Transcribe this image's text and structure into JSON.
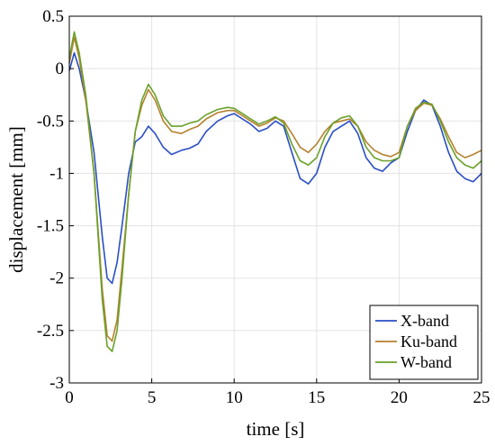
{
  "chart_data": {
    "type": "line",
    "title": "",
    "xlabel": "time [s]",
    "ylabel": "displacement [mm]",
    "xlim": [
      0,
      25
    ],
    "ylim": [
      -3,
      0.5
    ],
    "grid": true,
    "legend_placement": "bottom-right",
    "x_ticks": [
      0,
      5,
      10,
      15,
      20,
      25
    ],
    "x_tick_labels": [
      "0",
      "5",
      "10",
      "15",
      "20",
      "25"
    ],
    "y_ticks": [
      0.5,
      0,
      -0.5,
      -1,
      -1.5,
      -2,
      -2.5,
      -3
    ],
    "y_tick_labels": [
      "0.5",
      "0",
      "-0.5",
      "-1",
      "-1.5",
      "-2",
      "-2.5",
      "-3"
    ],
    "series": [
      {
        "name": "X-band",
        "color": "#2a4ec4",
        "points": [
          [
            0,
            -0.02
          ],
          [
            0.3,
            0.15
          ],
          [
            0.6,
            0.0
          ],
          [
            1.0,
            -0.3
          ],
          [
            1.5,
            -0.8
          ],
          [
            2.0,
            -1.6
          ],
          [
            2.3,
            -2.0
          ],
          [
            2.6,
            -2.05
          ],
          [
            2.9,
            -1.85
          ],
          [
            3.2,
            -1.5
          ],
          [
            3.6,
            -1.0
          ],
          [
            4.0,
            -0.7
          ],
          [
            4.4,
            -0.65
          ],
          [
            4.8,
            -0.55
          ],
          [
            5.2,
            -0.62
          ],
          [
            5.7,
            -0.75
          ],
          [
            6.2,
            -0.82
          ],
          [
            6.8,
            -0.78
          ],
          [
            7.3,
            -0.76
          ],
          [
            7.8,
            -0.72
          ],
          [
            8.3,
            -0.6
          ],
          [
            9.0,
            -0.5
          ],
          [
            9.6,
            -0.45
          ],
          [
            10.0,
            -0.43
          ],
          [
            10.5,
            -0.48
          ],
          [
            11.0,
            -0.53
          ],
          [
            11.5,
            -0.6
          ],
          [
            12.0,
            -0.57
          ],
          [
            12.5,
            -0.5
          ],
          [
            13.0,
            -0.55
          ],
          [
            13.5,
            -0.8
          ],
          [
            14.0,
            -1.05
          ],
          [
            14.5,
            -1.1
          ],
          [
            15.0,
            -1.0
          ],
          [
            15.5,
            -0.75
          ],
          [
            16.0,
            -0.6
          ],
          [
            16.5,
            -0.55
          ],
          [
            17.0,
            -0.5
          ],
          [
            17.5,
            -0.62
          ],
          [
            18.0,
            -0.85
          ],
          [
            18.5,
            -0.95
          ],
          [
            19.0,
            -0.98
          ],
          [
            19.5,
            -0.9
          ],
          [
            20.0,
            -0.85
          ],
          [
            20.5,
            -0.6
          ],
          [
            21.0,
            -0.4
          ],
          [
            21.5,
            -0.3
          ],
          [
            22.0,
            -0.35
          ],
          [
            22.5,
            -0.55
          ],
          [
            23.0,
            -0.8
          ],
          [
            23.5,
            -0.98
          ],
          [
            24.0,
            -1.05
          ],
          [
            24.5,
            -1.08
          ],
          [
            25.0,
            -1.0
          ]
        ]
      },
      {
        "name": "Ku-band",
        "color": "#b5812e",
        "points": [
          [
            0,
            0.05
          ],
          [
            0.3,
            0.3
          ],
          [
            0.6,
            0.1
          ],
          [
            1.0,
            -0.3
          ],
          [
            1.5,
            -1.0
          ],
          [
            2.0,
            -2.1
          ],
          [
            2.3,
            -2.55
          ],
          [
            2.6,
            -2.6
          ],
          [
            2.9,
            -2.4
          ],
          [
            3.2,
            -1.9
          ],
          [
            3.6,
            -1.2
          ],
          [
            4.0,
            -0.6
          ],
          [
            4.4,
            -0.35
          ],
          [
            4.8,
            -0.2
          ],
          [
            5.2,
            -0.3
          ],
          [
            5.7,
            -0.5
          ],
          [
            6.2,
            -0.6
          ],
          [
            6.8,
            -0.62
          ],
          [
            7.3,
            -0.58
          ],
          [
            7.8,
            -0.55
          ],
          [
            8.3,
            -0.48
          ],
          [
            9.0,
            -0.42
          ],
          [
            9.6,
            -0.4
          ],
          [
            10.0,
            -0.4
          ],
          [
            10.5,
            -0.45
          ],
          [
            11.0,
            -0.5
          ],
          [
            11.5,
            -0.55
          ],
          [
            12.0,
            -0.52
          ],
          [
            12.5,
            -0.47
          ],
          [
            13.0,
            -0.5
          ],
          [
            13.5,
            -0.62
          ],
          [
            14.0,
            -0.75
          ],
          [
            14.5,
            -0.8
          ],
          [
            15.0,
            -0.72
          ],
          [
            15.5,
            -0.6
          ],
          [
            16.0,
            -0.52
          ],
          [
            16.5,
            -0.5
          ],
          [
            17.0,
            -0.48
          ],
          [
            17.5,
            -0.55
          ],
          [
            18.0,
            -0.7
          ],
          [
            18.5,
            -0.78
          ],
          [
            19.0,
            -0.82
          ],
          [
            19.5,
            -0.84
          ],
          [
            20.0,
            -0.8
          ],
          [
            20.5,
            -0.55
          ],
          [
            21.0,
            -0.4
          ],
          [
            21.5,
            -0.33
          ],
          [
            22.0,
            -0.35
          ],
          [
            22.5,
            -0.48
          ],
          [
            23.0,
            -0.65
          ],
          [
            23.5,
            -0.8
          ],
          [
            24.0,
            -0.85
          ],
          [
            24.5,
            -0.82
          ],
          [
            25.0,
            -0.78
          ]
        ]
      },
      {
        "name": "W-band",
        "color": "#6aa12a",
        "points": [
          [
            0,
            0.1
          ],
          [
            0.3,
            0.35
          ],
          [
            0.6,
            0.15
          ],
          [
            1.0,
            -0.25
          ],
          [
            1.5,
            -1.0
          ],
          [
            2.0,
            -2.2
          ],
          [
            2.3,
            -2.65
          ],
          [
            2.6,
            -2.7
          ],
          [
            2.9,
            -2.5
          ],
          [
            3.2,
            -2.0
          ],
          [
            3.6,
            -1.2
          ],
          [
            4.0,
            -0.6
          ],
          [
            4.4,
            -0.3
          ],
          [
            4.8,
            -0.15
          ],
          [
            5.2,
            -0.25
          ],
          [
            5.7,
            -0.45
          ],
          [
            6.2,
            -0.55
          ],
          [
            6.8,
            -0.55
          ],
          [
            7.3,
            -0.52
          ],
          [
            7.8,
            -0.5
          ],
          [
            8.3,
            -0.44
          ],
          [
            9.0,
            -0.39
          ],
          [
            9.6,
            -0.37
          ],
          [
            10.0,
            -0.38
          ],
          [
            10.5,
            -0.43
          ],
          [
            11.0,
            -0.48
          ],
          [
            11.5,
            -0.53
          ],
          [
            12.0,
            -0.5
          ],
          [
            12.5,
            -0.46
          ],
          [
            13.0,
            -0.52
          ],
          [
            13.5,
            -0.72
          ],
          [
            14.0,
            -0.88
          ],
          [
            14.5,
            -0.92
          ],
          [
            15.0,
            -0.85
          ],
          [
            15.5,
            -0.65
          ],
          [
            16.0,
            -0.52
          ],
          [
            16.5,
            -0.47
          ],
          [
            17.0,
            -0.45
          ],
          [
            17.5,
            -0.55
          ],
          [
            18.0,
            -0.75
          ],
          [
            18.5,
            -0.85
          ],
          [
            19.0,
            -0.88
          ],
          [
            19.5,
            -0.88
          ],
          [
            20.0,
            -0.85
          ],
          [
            20.5,
            -0.55
          ],
          [
            21.0,
            -0.38
          ],
          [
            21.5,
            -0.32
          ],
          [
            22.0,
            -0.34
          ],
          [
            22.5,
            -0.5
          ],
          [
            23.0,
            -0.7
          ],
          [
            23.5,
            -0.85
          ],
          [
            24.0,
            -0.92
          ],
          [
            24.5,
            -0.95
          ],
          [
            25.0,
            -0.88
          ]
        ]
      }
    ]
  }
}
